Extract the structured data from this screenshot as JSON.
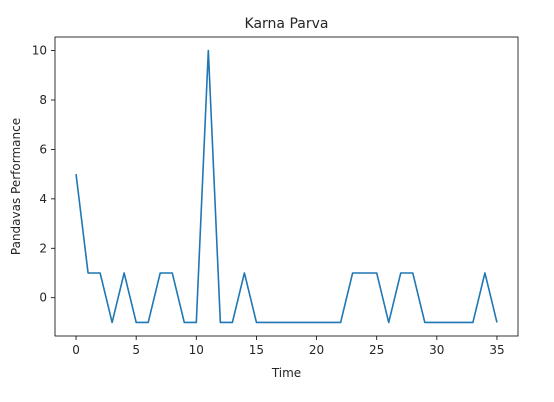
{
  "chart_data": {
    "type": "line",
    "title": "Karna Parva",
    "xlabel": "Time",
    "ylabel": "Pandavas Performance",
    "xlim": [
      -1.75,
      36.75
    ],
    "ylim": [
      -1.55,
      10.55
    ],
    "xticks": [
      0,
      5,
      10,
      15,
      20,
      25,
      30,
      35
    ],
    "yticks": [
      0,
      2,
      4,
      6,
      8,
      10
    ],
    "grid": false,
    "series": [
      {
        "color": "#1f77b4",
        "x": [
          0,
          1,
          2,
          3,
          4,
          5,
          6,
          7,
          8,
          9,
          10,
          11,
          12,
          13,
          14,
          15,
          16,
          17,
          18,
          19,
          20,
          21,
          22,
          23,
          24,
          25,
          26,
          27,
          28,
          29,
          30,
          31,
          32,
          33,
          34,
          35
        ],
        "y": [
          5,
          1,
          1,
          -1,
          1,
          -1,
          -1,
          1,
          1,
          -1,
          -1,
          10,
          -1,
          -1,
          1,
          -1,
          -1,
          -1,
          -1,
          -1,
          -1,
          -1,
          -1,
          1,
          1,
          1,
          -1,
          1,
          1,
          -1,
          -1,
          -1,
          -1,
          -1,
          1,
          -1
        ]
      }
    ]
  }
}
